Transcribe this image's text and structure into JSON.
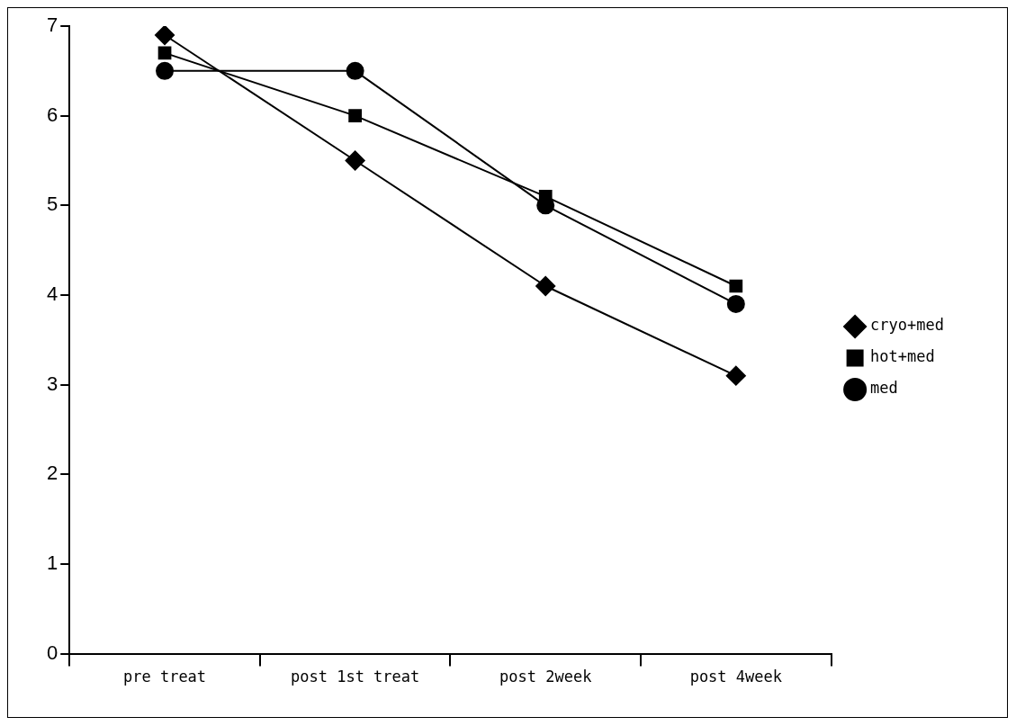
{
  "chart_data": {
    "type": "line",
    "categories": [
      "pre treat",
      "post 1st treat",
      "post 2week",
      "post 4week"
    ],
    "series": [
      {
        "name": "cryo+med",
        "color": "#000000",
        "marker": "diamond",
        "values": [
          6.9,
          5.5,
          4.1,
          3.1
        ]
      },
      {
        "name": "hot+med",
        "color": "#000000",
        "marker": "square",
        "values": [
          6.7,
          6.0,
          5.1,
          4.1
        ]
      },
      {
        "name": "med",
        "color": "#000000",
        "marker": "circle",
        "values": [
          6.5,
          6.5,
          5.0,
          3.9
        ]
      }
    ],
    "ylim": [
      0,
      7
    ],
    "yticks": [
      0,
      1,
      2,
      3,
      4,
      5,
      6,
      7
    ],
    "grid": false,
    "legend": "right",
    "line_style": "solid"
  }
}
